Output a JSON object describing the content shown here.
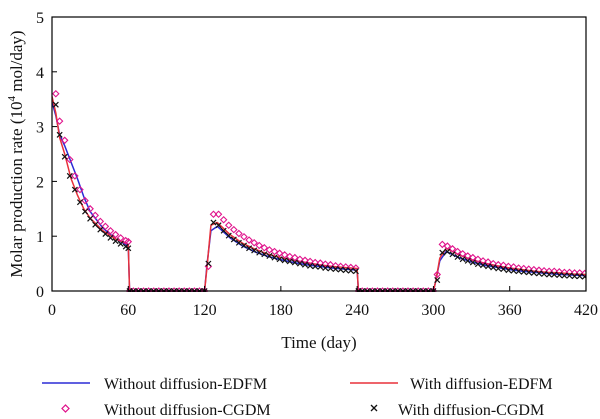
{
  "chart_data": {
    "type": "line",
    "xlabel": "Time (day)",
    "ylabel_main": "Molar production rate (10",
    "ylabel_sup": "4",
    "ylabel_unit": " mol/day)",
    "xlim": [
      0,
      420
    ],
    "ylim": [
      0,
      5
    ],
    "xticks": [
      "0",
      "60",
      "120",
      "180",
      "240",
      "300",
      "360",
      "420"
    ],
    "yticks": [
      "0",
      "1",
      "2",
      "3",
      "4",
      "5"
    ],
    "grid": false,
    "legend_position": "bottom",
    "series": [
      {
        "name": "Without diffusion-EDFM",
        "style": "line",
        "color": "#2b2bd6",
        "x": [
          0,
          3,
          6,
          10,
          15,
          20,
          25,
          30,
          40,
          50,
          60,
          61,
          120,
          122,
          125,
          130,
          140,
          150,
          160,
          170,
          180,
          190,
          200,
          210,
          220,
          230,
          240,
          241,
          300,
          302,
          305,
          310,
          320,
          330,
          340,
          350,
          360,
          370,
          380,
          390,
          400,
          410,
          420
        ],
        "y": [
          3.45,
          3.2,
          2.85,
          2.65,
          2.35,
          2.05,
          1.72,
          1.45,
          1.15,
          0.95,
          0.82,
          0,
          0,
          0.5,
          1.1,
          1.18,
          0.97,
          0.82,
          0.71,
          0.63,
          0.57,
          0.52,
          0.48,
          0.45,
          0.42,
          0.4,
          0.38,
          0,
          0,
          0.2,
          0.55,
          0.72,
          0.61,
          0.53,
          0.47,
          0.43,
          0.39,
          0.36,
          0.34,
          0.32,
          0.3,
          0.29,
          0.28
        ]
      },
      {
        "name": "With diffusion-EDFM",
        "style": "line",
        "color": "#e8303a",
        "x": [
          0,
          3,
          6,
          10,
          15,
          20,
          25,
          30,
          40,
          50,
          60,
          61,
          120,
          122,
          125,
          130,
          140,
          150,
          160,
          170,
          180,
          190,
          200,
          210,
          220,
          230,
          240,
          241,
          300,
          302,
          305,
          310,
          320,
          330,
          340,
          350,
          360,
          370,
          380,
          390,
          400,
          410,
          420
        ],
        "y": [
          3.55,
          3.25,
          2.8,
          2.5,
          2.05,
          1.75,
          1.5,
          1.33,
          1.1,
          0.95,
          0.85,
          0,
          0,
          0.45,
          1.2,
          1.25,
          1.03,
          0.87,
          0.76,
          0.67,
          0.61,
          0.56,
          0.52,
          0.48,
          0.45,
          0.43,
          0.41,
          0,
          0,
          0.2,
          0.6,
          0.78,
          0.66,
          0.57,
          0.51,
          0.46,
          0.42,
          0.39,
          0.36,
          0.34,
          0.33,
          0.31,
          0.3
        ]
      },
      {
        "name": "Without diffusion-CGDM",
        "style": "marker-diamond",
        "color": "#e0148c",
        "x": [
          3,
          6,
          10,
          14,
          18,
          22,
          26,
          30,
          34,
          38,
          42,
          46,
          50,
          54,
          58,
          60,
          61,
          64,
          68,
          72,
          76,
          80,
          84,
          88,
          92,
          96,
          100,
          104,
          108,
          112,
          116,
          120,
          123,
          127,
          131,
          135,
          139,
          143,
          147,
          151,
          155,
          159,
          163,
          167,
          171,
          175,
          179,
          183,
          187,
          191,
          195,
          199,
          203,
          207,
          211,
          215,
          219,
          223,
          227,
          231,
          235,
          239,
          241,
          244,
          248,
          252,
          256,
          260,
          264,
          268,
          272,
          276,
          280,
          284,
          288,
          292,
          296,
          300,
          303,
          307,
          311,
          315,
          319,
          323,
          327,
          331,
          335,
          339,
          343,
          347,
          351,
          355,
          359,
          363,
          367,
          371,
          375,
          379,
          383,
          387,
          391,
          395,
          399,
          403,
          407,
          411,
          415,
          419
        ],
        "y": [
          3.6,
          3.1,
          2.75,
          2.4,
          2.1,
          1.85,
          1.65,
          1.5,
          1.38,
          1.27,
          1.18,
          1.1,
          1.03,
          0.97,
          0.92,
          0.9,
          0,
          0,
          0,
          0,
          0,
          0,
          0,
          0,
          0,
          0,
          0,
          0,
          0,
          0,
          0,
          0,
          0.45,
          1.4,
          1.4,
          1.3,
          1.2,
          1.12,
          1.05,
          0.99,
          0.93,
          0.88,
          0.83,
          0.79,
          0.75,
          0.72,
          0.69,
          0.66,
          0.63,
          0.61,
          0.58,
          0.56,
          0.54,
          0.52,
          0.51,
          0.49,
          0.48,
          0.46,
          0.45,
          0.44,
          0.43,
          0.42,
          0,
          0,
          0,
          0,
          0,
          0,
          0,
          0,
          0,
          0,
          0,
          0,
          0,
          0,
          0,
          0,
          0.3,
          0.85,
          0.82,
          0.77,
          0.72,
          0.68,
          0.64,
          0.61,
          0.58,
          0.55,
          0.53,
          0.5,
          0.48,
          0.47,
          0.45,
          0.44,
          0.42,
          0.41,
          0.4,
          0.39,
          0.38,
          0.37,
          0.36,
          0.36,
          0.35,
          0.34,
          0.34,
          0.33,
          0.33,
          0.32
        ]
      },
      {
        "name": "With diffusion-CGDM",
        "style": "marker-x",
        "color": "#111111",
        "x": [
          3,
          6,
          10,
          14,
          18,
          22,
          26,
          30,
          34,
          38,
          42,
          46,
          50,
          54,
          58,
          60,
          61,
          64,
          68,
          72,
          76,
          80,
          84,
          88,
          92,
          96,
          100,
          104,
          108,
          112,
          116,
          120,
          123,
          127,
          131,
          135,
          139,
          143,
          147,
          151,
          155,
          159,
          163,
          167,
          171,
          175,
          179,
          183,
          187,
          191,
          195,
          199,
          203,
          207,
          211,
          215,
          219,
          223,
          227,
          231,
          235,
          239,
          241,
          244,
          248,
          252,
          256,
          260,
          264,
          268,
          272,
          276,
          280,
          284,
          288,
          292,
          296,
          300,
          303,
          307,
          311,
          315,
          319,
          323,
          327,
          331,
          335,
          339,
          343,
          347,
          351,
          355,
          359,
          363,
          367,
          371,
          375,
          379,
          383,
          387,
          391,
          395,
          399,
          403,
          407,
          411,
          415,
          419
        ],
        "y": [
          3.4,
          2.85,
          2.45,
          2.1,
          1.85,
          1.62,
          1.45,
          1.32,
          1.21,
          1.12,
          1.04,
          0.97,
          0.91,
          0.86,
          0.81,
          0.78,
          0,
          0,
          0,
          0,
          0,
          0,
          0,
          0,
          0,
          0,
          0,
          0,
          0,
          0,
          0,
          0,
          0.5,
          1.25,
          1.2,
          1.1,
          1.01,
          0.94,
          0.88,
          0.83,
          0.78,
          0.74,
          0.7,
          0.67,
          0.64,
          0.61,
          0.58,
          0.56,
          0.54,
          0.52,
          0.5,
          0.48,
          0.46,
          0.45,
          0.44,
          0.42,
          0.41,
          0.4,
          0.39,
          0.38,
          0.37,
          0.36,
          0,
          0,
          0,
          0,
          0,
          0,
          0,
          0,
          0,
          0,
          0,
          0,
          0,
          0,
          0,
          0,
          0.2,
          0.7,
          0.72,
          0.67,
          0.62,
          0.58,
          0.55,
          0.52,
          0.49,
          0.47,
          0.45,
          0.43,
          0.41,
          0.4,
          0.38,
          0.37,
          0.36,
          0.35,
          0.34,
          0.33,
          0.32,
          0.31,
          0.3,
          0.3,
          0.29,
          0.28,
          0.28,
          0.27,
          0.27,
          0.26
        ]
      }
    ]
  }
}
